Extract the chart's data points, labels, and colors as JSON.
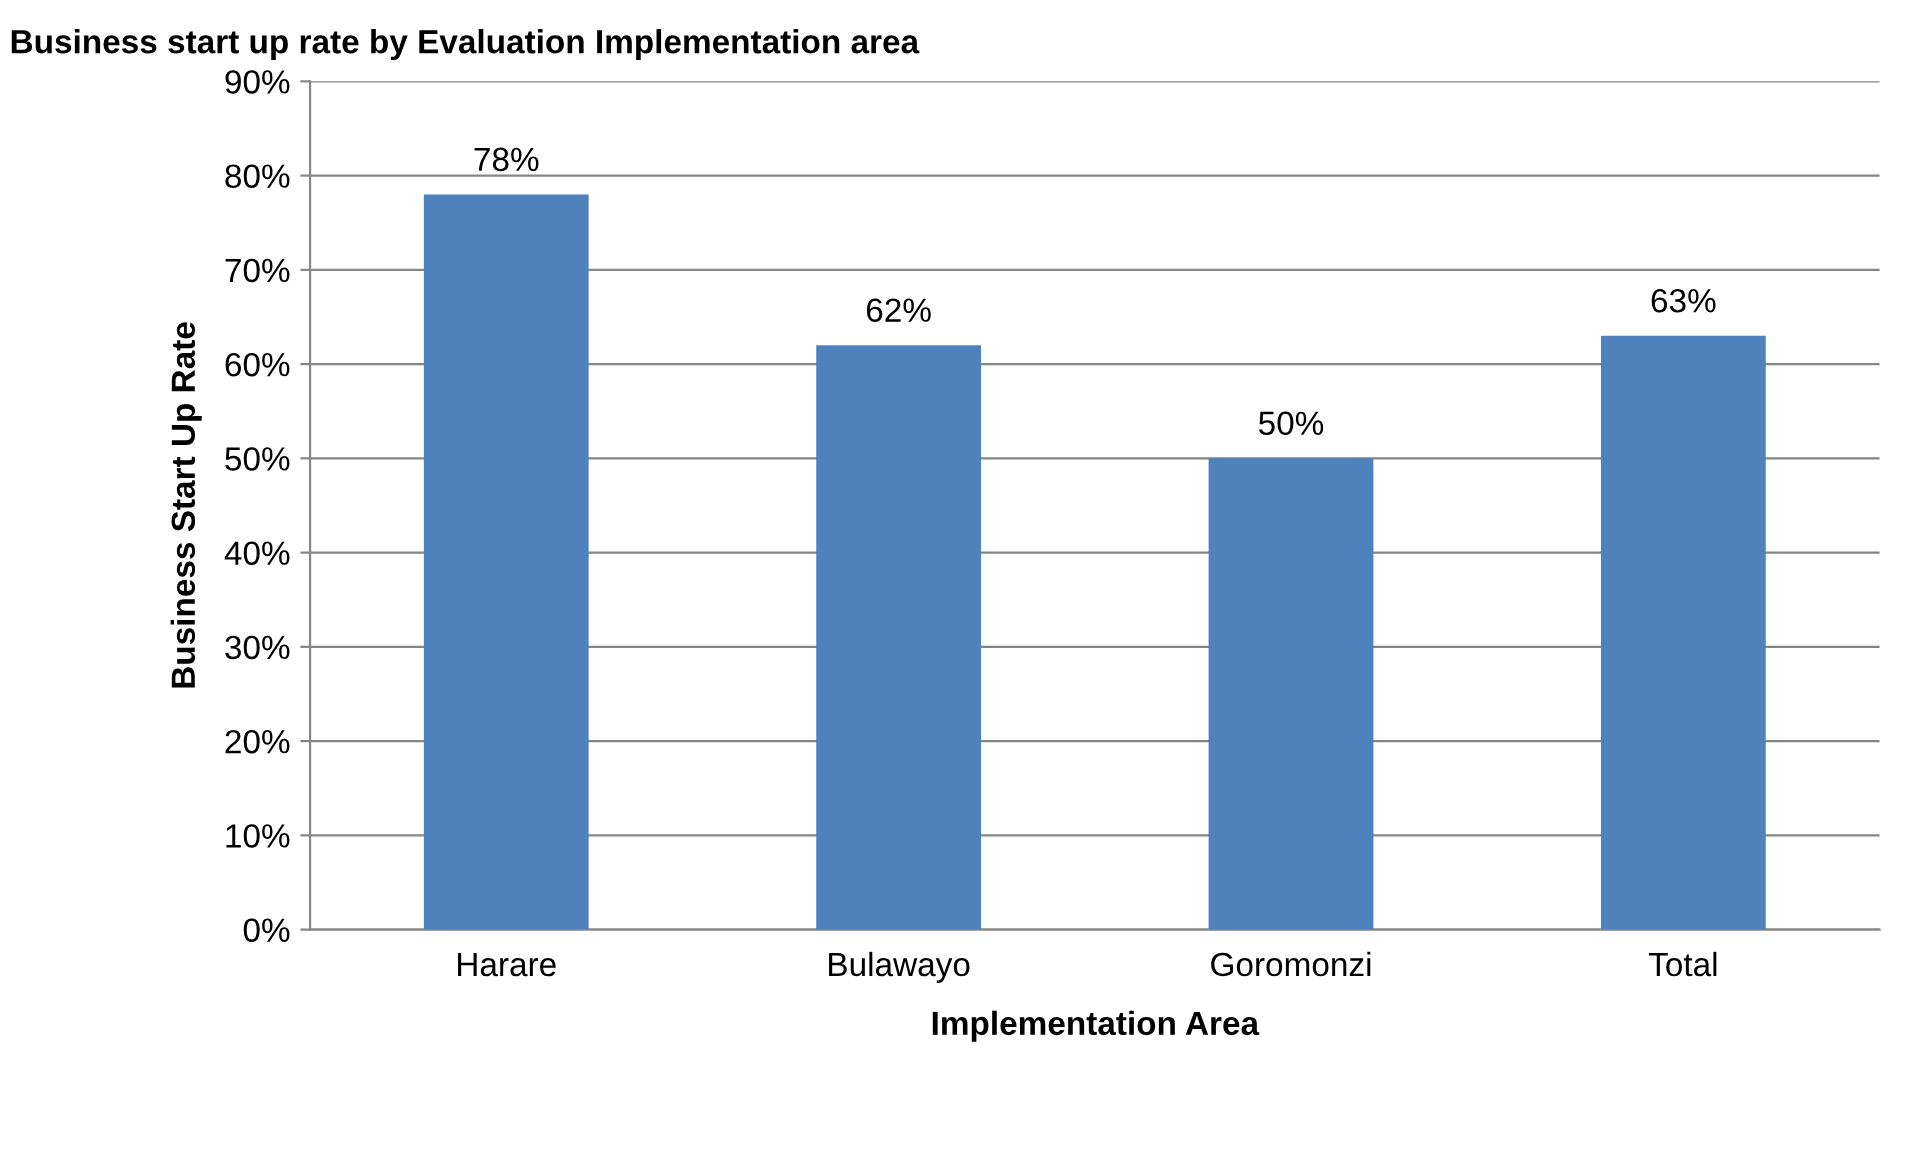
{
  "chart_data": {
    "type": "bar",
    "title": "Business start up rate by Evaluation Implementation area",
    "xlabel": "Implementation Area",
    "ylabel": "Business Start Up Rate",
    "categories": [
      "Harare",
      "Bulawayo",
      "Goromonzi",
      "Total"
    ],
    "values": [
      78,
      62,
      50,
      63
    ],
    "value_labels": [
      "78%",
      "62%",
      "50%",
      "63%"
    ],
    "color": "#4f81bd",
    "ylim": [
      0,
      90
    ],
    "yticks": [
      {
        "value": 0,
        "label": "0%"
      },
      {
        "value": 10,
        "label": "10%"
      },
      {
        "value": 20,
        "label": "20%"
      },
      {
        "value": 30,
        "label": "30%"
      },
      {
        "value": 40,
        "label": "40%"
      },
      {
        "value": 50,
        "label": "50%"
      },
      {
        "value": 60,
        "label": "60%"
      },
      {
        "value": 70,
        "label": "70%"
      },
      {
        "value": 80,
        "label": "80%"
      },
      {
        "value": 90,
        "label": "90%"
      }
    ],
    "grid": "y"
  }
}
